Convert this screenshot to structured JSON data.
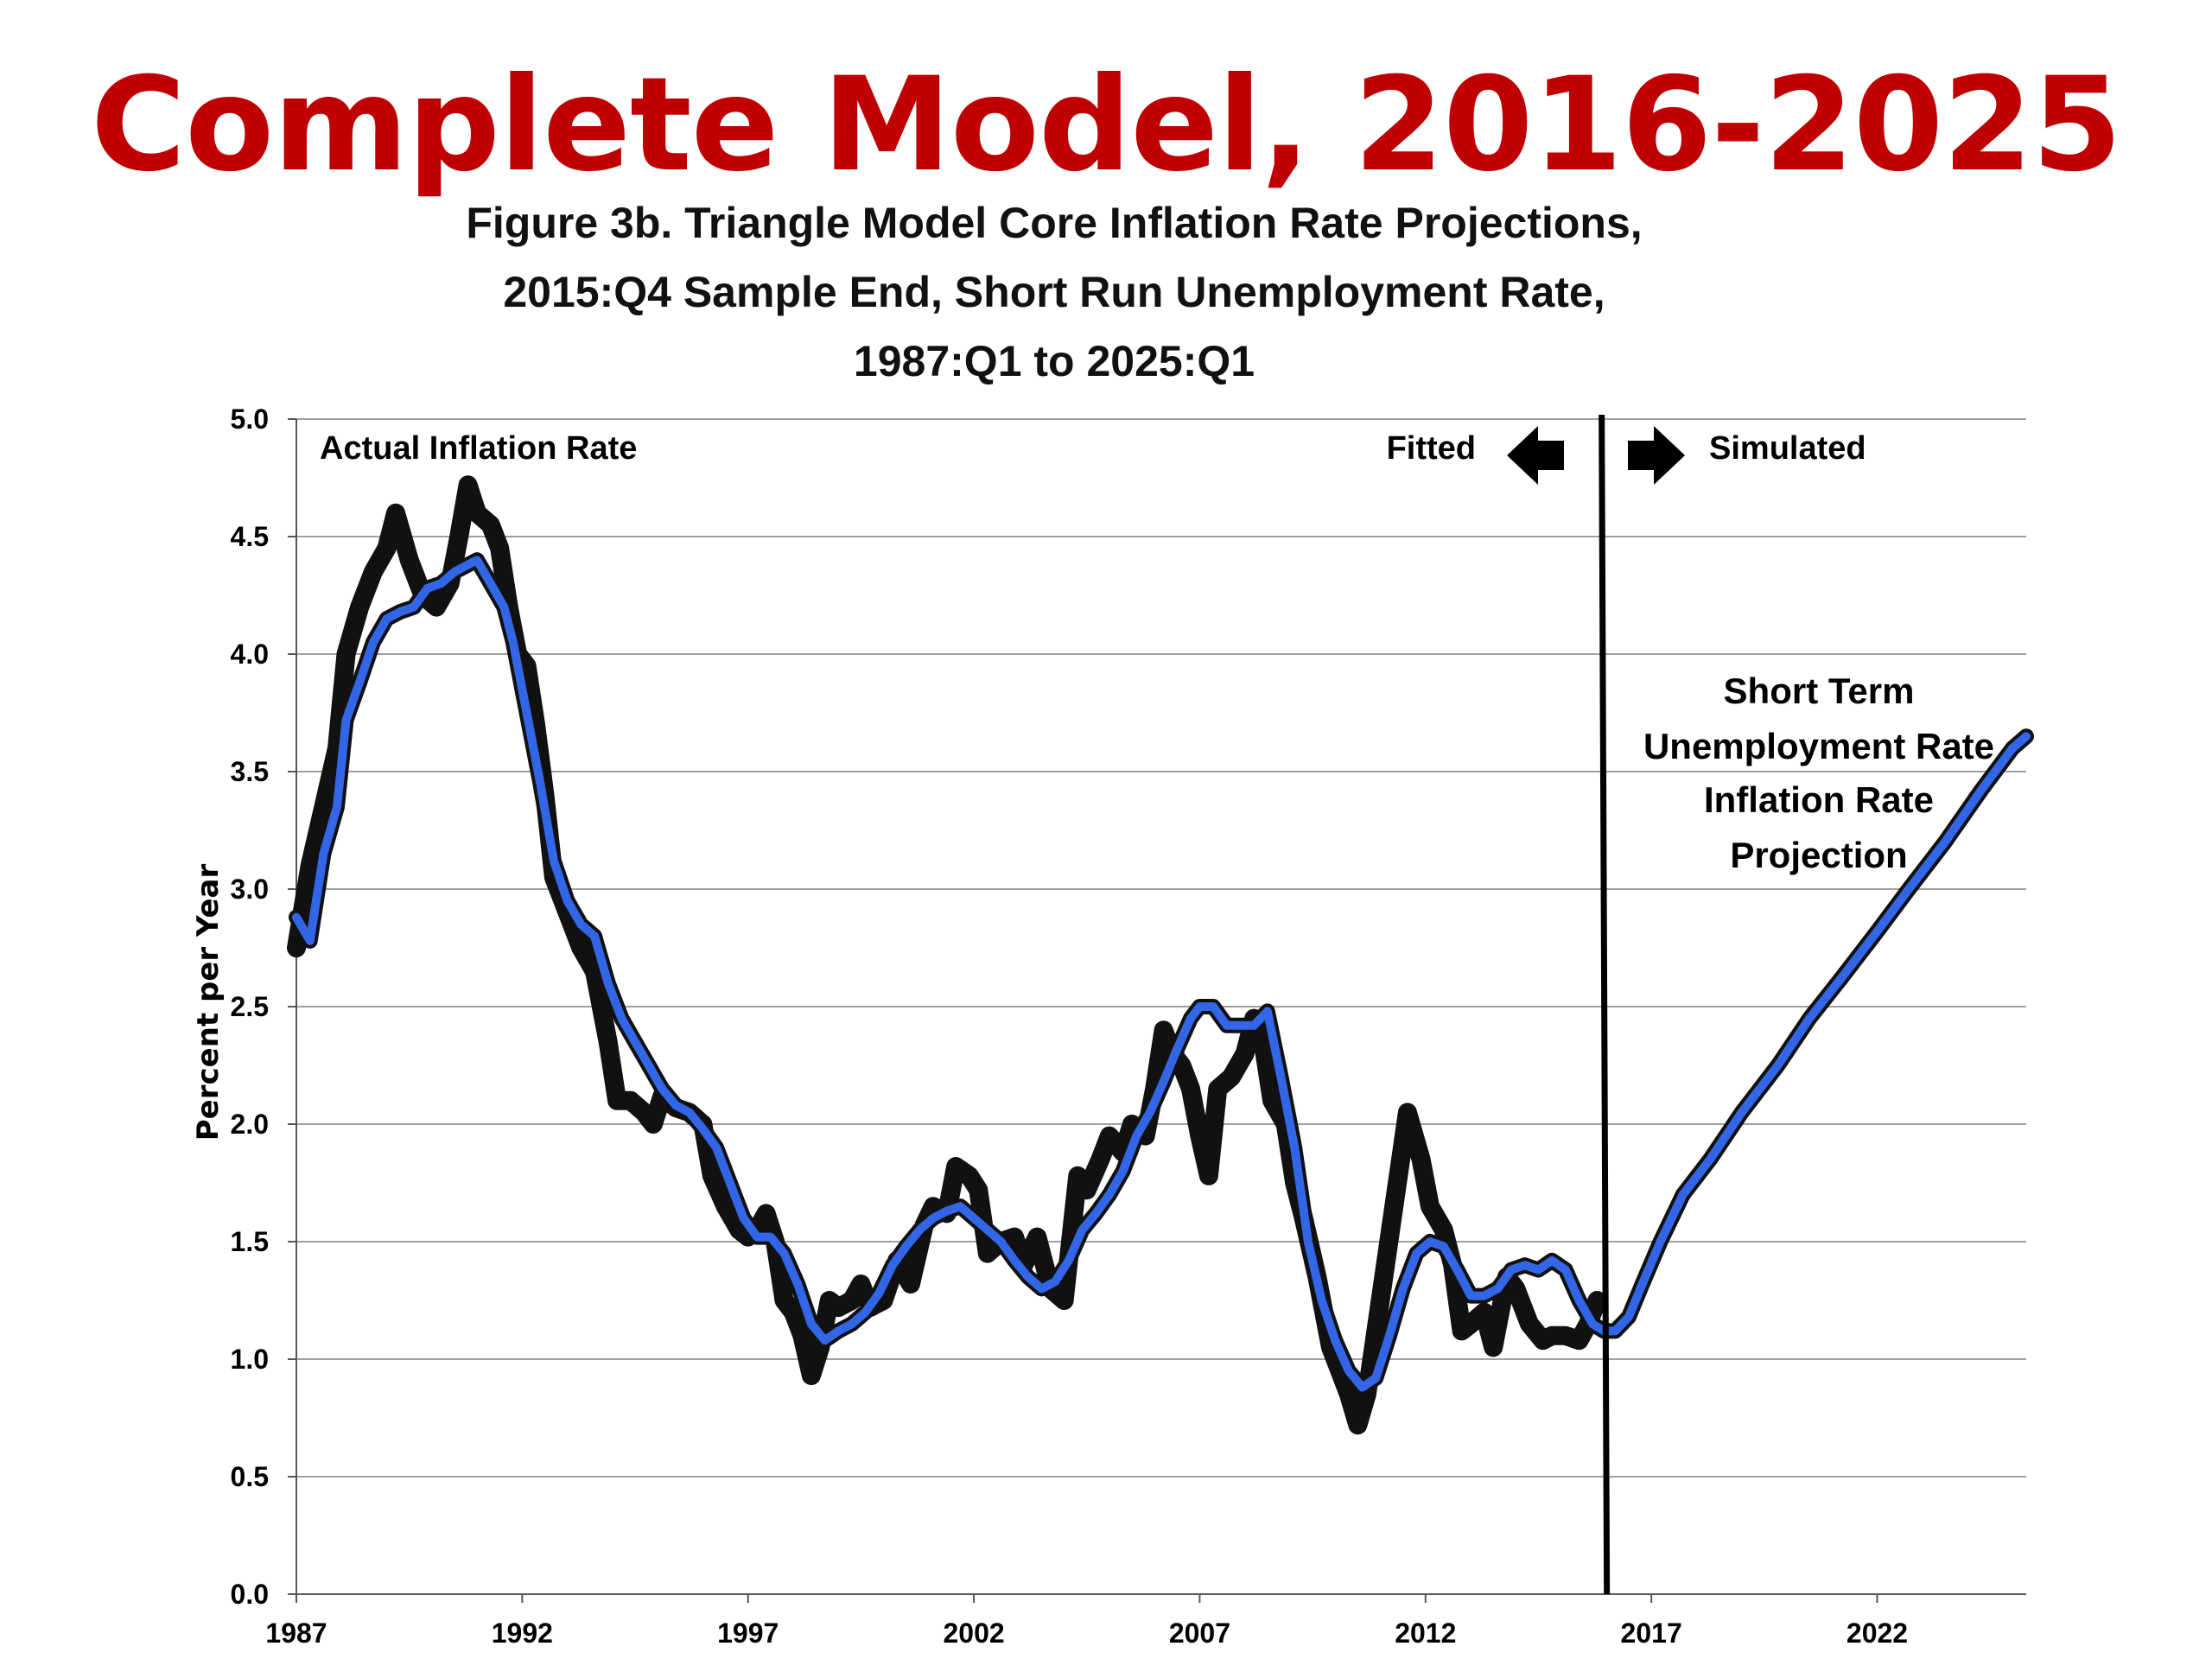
{
  "slide_title": "Complete Model, 2016-2025",
  "chart_data": {
    "type": "line",
    "title_lines": [
      "Figure 3b. Triangle Model Core Inflation Rate Projections,",
      "2015:Q4 Sample End, Short Run Unemployment Rate,",
      "1987:Q1 to 2025:Q1"
    ],
    "ylabel": "Percent per Year",
    "xlabel": "",
    "xlim": [
      1987,
      2025.3
    ],
    "ylim": [
      0,
      5
    ],
    "yticks": [
      "0.0",
      "0.5",
      "1.0",
      "1.5",
      "2.0",
      "2.5",
      "3.0",
      "3.5",
      "4.0",
      "4.5",
      "5.0"
    ],
    "xticks": [
      "1987",
      "1992",
      "1997",
      "2002",
      "2007",
      "2012",
      "2017",
      "2022"
    ],
    "grid": "horizontal",
    "sample_end_marker": 2015.9,
    "annotations": {
      "actual": "Actual Inflation Rate",
      "fitted": "Fitted",
      "simulated": "Simulated",
      "projection": [
        "Short Term",
        "Unemployment Rate",
        "Inflation Rate",
        "Projection"
      ]
    },
    "colors": {
      "actual": "#111111",
      "fitted": "#3366e6",
      "marker": "#000000",
      "grid": "#a0a0a0"
    },
    "series": [
      {
        "id": "actual",
        "points": [
          [
            1987.0,
            2.75
          ],
          [
            1987.3,
            3.1
          ],
          [
            1987.6,
            3.35
          ],
          [
            1987.9,
            3.6
          ],
          [
            1988.1,
            4.0
          ],
          [
            1988.4,
            4.2
          ],
          [
            1988.7,
            4.35
          ],
          [
            1989.0,
            4.45
          ],
          [
            1989.2,
            4.6
          ],
          [
            1989.5,
            4.4
          ],
          [
            1989.8,
            4.25
          ],
          [
            1990.1,
            4.2
          ],
          [
            1990.4,
            4.3
          ],
          [
            1990.6,
            4.5
          ],
          [
            1990.8,
            4.72
          ],
          [
            1991.0,
            4.6
          ],
          [
            1991.3,
            4.55
          ],
          [
            1991.5,
            4.45
          ],
          [
            1991.7,
            4.2
          ],
          [
            1991.9,
            4.0
          ],
          [
            1992.1,
            3.95
          ],
          [
            1992.3,
            3.7
          ],
          [
            1992.5,
            3.4
          ],
          [
            1992.7,
            3.05
          ],
          [
            1993.0,
            2.9
          ],
          [
            1993.3,
            2.75
          ],
          [
            1993.6,
            2.65
          ],
          [
            1993.9,
            2.35
          ],
          [
            1994.1,
            2.1
          ],
          [
            1994.4,
            2.1
          ],
          [
            1994.7,
            2.05
          ],
          [
            1994.9,
            2.0
          ],
          [
            1995.1,
            2.12
          ],
          [
            1995.4,
            2.07
          ],
          [
            1995.7,
            2.05
          ],
          [
            1996.0,
            2.0
          ],
          [
            1996.2,
            1.78
          ],
          [
            1996.5,
            1.65
          ],
          [
            1996.8,
            1.55
          ],
          [
            1997.0,
            1.52
          ],
          [
            1997.2,
            1.55
          ],
          [
            1997.4,
            1.62
          ],
          [
            1997.6,
            1.5
          ],
          [
            1997.8,
            1.25
          ],
          [
            1998.0,
            1.2
          ],
          [
            1998.2,
            1.1
          ],
          [
            1998.4,
            0.93
          ],
          [
            1998.6,
            1.05
          ],
          [
            1998.8,
            1.25
          ],
          [
            1999.0,
            1.22
          ],
          [
            1999.3,
            1.25
          ],
          [
            1999.5,
            1.32
          ],
          [
            1999.7,
            1.22
          ],
          [
            2000.0,
            1.25
          ],
          [
            2000.3,
            1.42
          ],
          [
            2000.6,
            1.32
          ],
          [
            2000.9,
            1.57
          ],
          [
            2001.1,
            1.65
          ],
          [
            2001.4,
            1.62
          ],
          [
            2001.6,
            1.82
          ],
          [
            2001.9,
            1.78
          ],
          [
            2002.1,
            1.72
          ],
          [
            2002.3,
            1.45
          ],
          [
            2002.6,
            1.5
          ],
          [
            2002.9,
            1.52
          ],
          [
            2003.1,
            1.4
          ],
          [
            2003.4,
            1.52
          ],
          [
            2003.7,
            1.3
          ],
          [
            2004.0,
            1.25
          ],
          [
            2004.3,
            1.78
          ],
          [
            2004.5,
            1.72
          ],
          [
            2004.8,
            1.85
          ],
          [
            2005.0,
            1.95
          ],
          [
            2005.3,
            1.88
          ],
          [
            2005.5,
            2.0
          ],
          [
            2005.8,
            1.95
          ],
          [
            2006.0,
            2.15
          ],
          [
            2006.2,
            2.4
          ],
          [
            2006.4,
            2.3
          ],
          [
            2006.6,
            2.25
          ],
          [
            2006.8,
            2.15
          ],
          [
            2007.0,
            1.95
          ],
          [
            2007.2,
            1.78
          ],
          [
            2007.4,
            2.15
          ],
          [
            2007.7,
            2.2
          ],
          [
            2008.0,
            2.3
          ],
          [
            2008.2,
            2.45
          ],
          [
            2008.4,
            2.35
          ],
          [
            2008.6,
            2.1
          ],
          [
            2008.9,
            2.0
          ],
          [
            2009.1,
            1.75
          ],
          [
            2009.3,
            1.6
          ],
          [
            2009.6,
            1.35
          ],
          [
            2009.9,
            1.05
          ],
          [
            2010.1,
            0.95
          ],
          [
            2010.3,
            0.85
          ],
          [
            2010.5,
            0.72
          ],
          [
            2010.7,
            0.85
          ],
          [
            2011.0,
            1.25
          ],
          [
            2011.3,
            1.65
          ],
          [
            2011.6,
            2.05
          ],
          [
            2011.9,
            1.85
          ],
          [
            2012.1,
            1.65
          ],
          [
            2012.4,
            1.55
          ],
          [
            2012.6,
            1.4
          ],
          [
            2012.8,
            1.12
          ],
          [
            2013.0,
            1.15
          ],
          [
            2013.3,
            1.2
          ],
          [
            2013.5,
            1.05
          ],
          [
            2013.8,
            1.35
          ],
          [
            2014.0,
            1.3
          ],
          [
            2014.3,
            1.15
          ],
          [
            2014.6,
            1.08
          ],
          [
            2014.8,
            1.1
          ],
          [
            2015.1,
            1.1
          ],
          [
            2015.4,
            1.08
          ],
          [
            2015.6,
            1.15
          ],
          [
            2015.8,
            1.25
          ]
        ]
      },
      {
        "id": "fitted",
        "points": [
          [
            1987.0,
            2.88
          ],
          [
            1987.3,
            2.78
          ],
          [
            1987.6,
            3.15
          ],
          [
            1987.9,
            3.35
          ],
          [
            1988.1,
            3.72
          ],
          [
            1988.4,
            3.88
          ],
          [
            1988.7,
            4.05
          ],
          [
            1989.0,
            4.15
          ],
          [
            1989.3,
            4.18
          ],
          [
            1989.6,
            4.2
          ],
          [
            1989.9,
            4.28
          ],
          [
            1990.2,
            4.3
          ],
          [
            1990.5,
            4.35
          ],
          [
            1990.8,
            4.38
          ],
          [
            1991.0,
            4.4
          ],
          [
            1991.3,
            4.3
          ],
          [
            1991.6,
            4.2
          ],
          [
            1991.8,
            4.05
          ],
          [
            1992.1,
            3.75
          ],
          [
            1992.4,
            3.45
          ],
          [
            1992.7,
            3.12
          ],
          [
            1993.0,
            2.95
          ],
          [
            1993.3,
            2.85
          ],
          [
            1993.6,
            2.8
          ],
          [
            1993.9,
            2.6
          ],
          [
            1994.2,
            2.45
          ],
          [
            1994.5,
            2.35
          ],
          [
            1994.8,
            2.25
          ],
          [
            1995.1,
            2.15
          ],
          [
            1995.4,
            2.08
          ],
          [
            1995.7,
            2.05
          ],
          [
            1996.0,
            1.98
          ],
          [
            1996.3,
            1.9
          ],
          [
            1996.6,
            1.75
          ],
          [
            1996.9,
            1.6
          ],
          [
            1997.2,
            1.52
          ],
          [
            1997.5,
            1.52
          ],
          [
            1997.8,
            1.45
          ],
          [
            1998.1,
            1.32
          ],
          [
            1998.4,
            1.15
          ],
          [
            1998.7,
            1.08
          ],
          [
            1999.0,
            1.12
          ],
          [
            1999.3,
            1.15
          ],
          [
            1999.6,
            1.2
          ],
          [
            1999.9,
            1.28
          ],
          [
            2000.2,
            1.4
          ],
          [
            2000.5,
            1.48
          ],
          [
            2000.8,
            1.55
          ],
          [
            2001.1,
            1.6
          ],
          [
            2001.4,
            1.63
          ],
          [
            2001.7,
            1.65
          ],
          [
            2002.0,
            1.6
          ],
          [
            2002.3,
            1.55
          ],
          [
            2002.6,
            1.5
          ],
          [
            2002.9,
            1.42
          ],
          [
            2003.2,
            1.35
          ],
          [
            2003.5,
            1.3
          ],
          [
            2003.8,
            1.33
          ],
          [
            2004.1,
            1.42
          ],
          [
            2004.4,
            1.55
          ],
          [
            2004.7,
            1.62
          ],
          [
            2005.0,
            1.7
          ],
          [
            2005.3,
            1.8
          ],
          [
            2005.6,
            1.95
          ],
          [
            2005.9,
            2.05
          ],
          [
            2006.2,
            2.18
          ],
          [
            2006.5,
            2.32
          ],
          [
            2006.8,
            2.45
          ],
          [
            2007.0,
            2.5
          ],
          [
            2007.3,
            2.5
          ],
          [
            2007.6,
            2.42
          ],
          [
            2007.9,
            2.42
          ],
          [
            2008.2,
            2.42
          ],
          [
            2008.5,
            2.48
          ],
          [
            2008.8,
            2.2
          ],
          [
            2009.1,
            1.9
          ],
          [
            2009.4,
            1.5
          ],
          [
            2009.7,
            1.25
          ],
          [
            2010.0,
            1.08
          ],
          [
            2010.3,
            0.95
          ],
          [
            2010.6,
            0.88
          ],
          [
            2010.9,
            0.92
          ],
          [
            2011.2,
            1.1
          ],
          [
            2011.5,
            1.3
          ],
          [
            2011.8,
            1.45
          ],
          [
            2012.1,
            1.5
          ],
          [
            2012.4,
            1.48
          ],
          [
            2012.7,
            1.38
          ],
          [
            2013.0,
            1.27
          ],
          [
            2013.3,
            1.27
          ],
          [
            2013.6,
            1.3
          ],
          [
            2013.9,
            1.38
          ],
          [
            2014.2,
            1.4
          ],
          [
            2014.5,
            1.38
          ],
          [
            2014.8,
            1.42
          ],
          [
            2015.1,
            1.38
          ],
          [
            2015.4,
            1.25
          ],
          [
            2015.7,
            1.15
          ],
          [
            2015.95,
            1.12
          ],
          [
            2016.2,
            1.12
          ],
          [
            2016.5,
            1.18
          ],
          [
            2016.8,
            1.32
          ],
          [
            2017.2,
            1.5
          ],
          [
            2017.7,
            1.7
          ],
          [
            2018.3,
            1.85
          ],
          [
            2019.0,
            2.05
          ],
          [
            2019.8,
            2.25
          ],
          [
            2020.5,
            2.45
          ],
          [
            2021.2,
            2.62
          ],
          [
            2022.0,
            2.82
          ],
          [
            2022.7,
            3.0
          ],
          [
            2023.5,
            3.2
          ],
          [
            2024.3,
            3.42
          ],
          [
            2025.0,
            3.6
          ],
          [
            2025.3,
            3.65
          ]
        ]
      }
    ]
  }
}
